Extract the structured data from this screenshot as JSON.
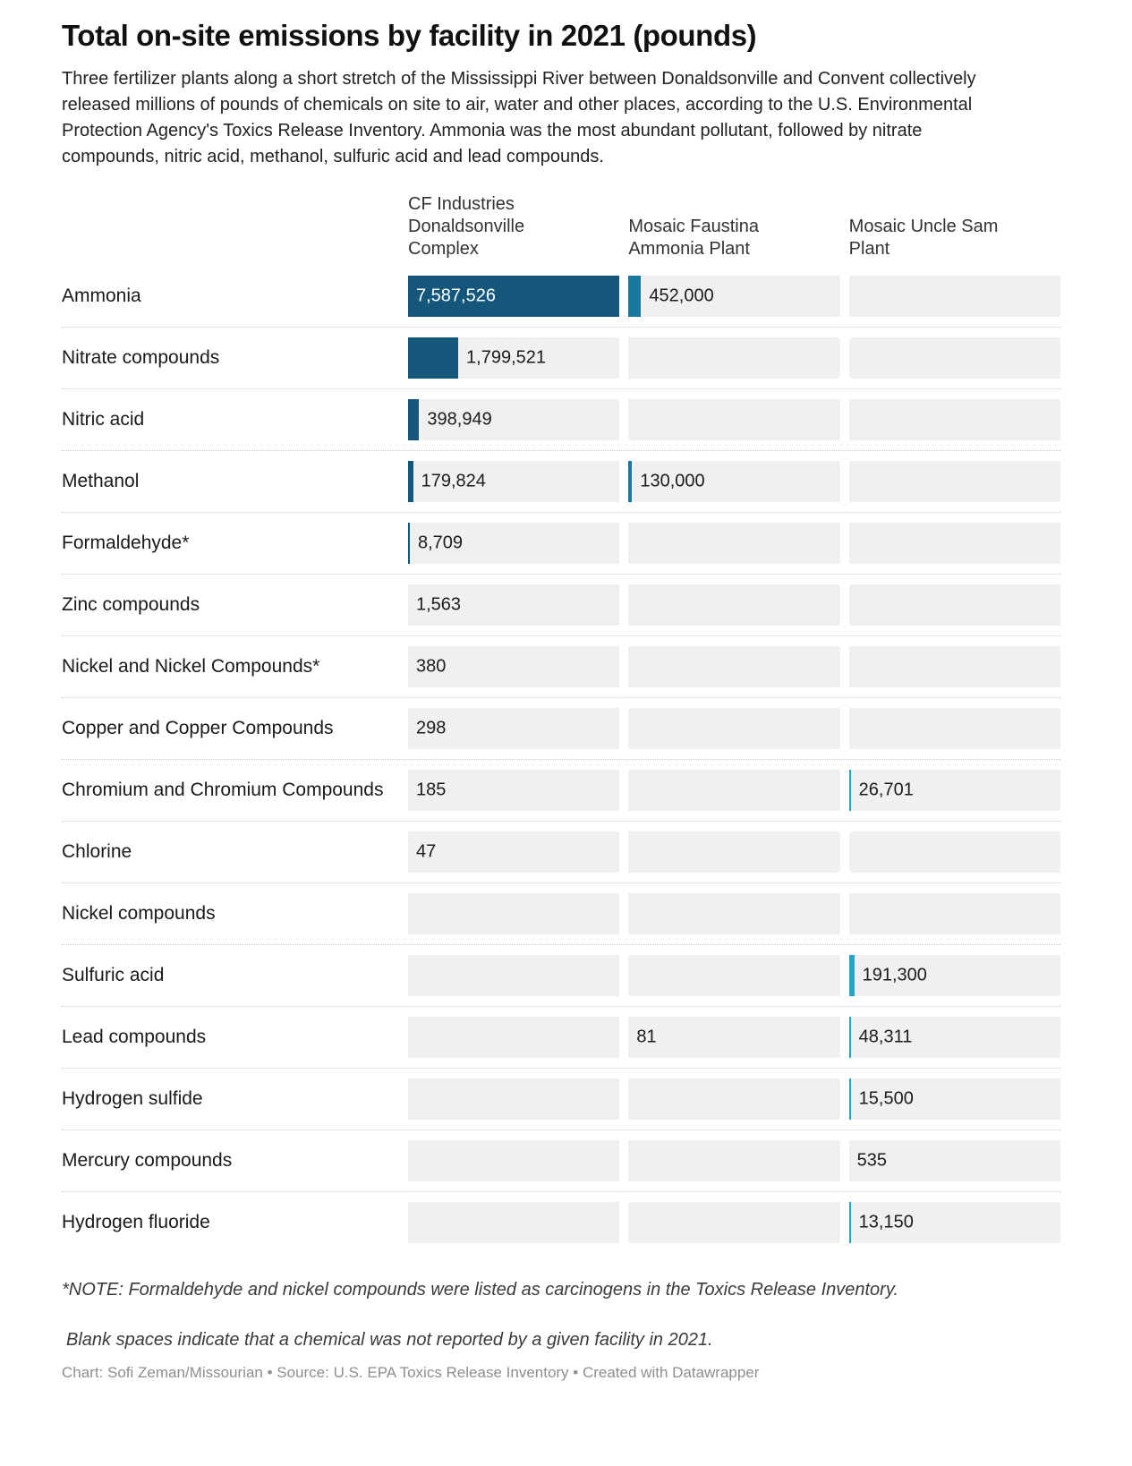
{
  "page": {
    "title": "Total on-site emissions by facility in 2021 (pounds)",
    "description": "Three fertilizer plants along a short stretch of the Mississippi River between Donaldsonville and Convent collectively released millions of pounds of chemicals on site to air, water and other places, according to the U.S. Environmental Protection Agency's Toxics Release Inventory. Ammonia was the most abundant pollutant, followed by nitrate compounds, nitric acid, methanol, sulfuric acid and lead compounds.",
    "notes": {
      "carcinogen": "*NOTE: Formaldehyde and nickel compounds were listed as carcinogens in the Toxics Release Inventory.",
      "blank": "Blank spaces indicate that a chemical was not reported by a given facility in 2021.",
      "credit": "Chart: Sofi Zeman/Missourian • Source: U.S. EPA Toxics Release Inventory • Created with Datawrapper"
    }
  },
  "chart_data": {
    "type": "bar",
    "title": "Total on-site emissions by facility in 2021 (pounds)",
    "unit": "pounds",
    "orientation": "horizontal",
    "max_value": 7587526,
    "xlim": [
      0,
      7587526
    ],
    "grid": "dotted-row-separators",
    "legend_position": "column-headers",
    "track_color": "#f0f0f0",
    "background_color": "#ffffff",
    "categories": [
      "Ammonia",
      "Nitrate compounds",
      "Nitric acid",
      "Methanol",
      "Formaldehyde*",
      "Zinc compounds",
      "Nickel and Nickel Compounds*",
      "Copper and Copper Compounds",
      "Chromium and Chromium Compounds",
      "Chlorine",
      "Nickel compounds",
      "Sulfuric acid",
      "Lead compounds",
      "Hydrogen sulfide",
      "Mercury compounds",
      "Hydrogen fluoride"
    ],
    "series": [
      {
        "name": "CF Industries Donaldsonville Complex",
        "color": "#15577b",
        "values": [
          7587526,
          1799521,
          398949,
          179824,
          8709,
          1563,
          380,
          298,
          185,
          47,
          null,
          null,
          null,
          null,
          null,
          null
        ]
      },
      {
        "name": "Mosaic Faustina Ammonia Plant",
        "color": "#1879a0",
        "values": [
          452000,
          null,
          null,
          130000,
          null,
          null,
          null,
          null,
          null,
          null,
          null,
          null,
          81,
          null,
          null,
          null
        ]
      },
      {
        "name": "Mosaic Uncle Sam Plant",
        "color": "#24a5c5",
        "values": [
          null,
          null,
          null,
          null,
          null,
          null,
          null,
          null,
          26701,
          null,
          null,
          191300,
          48311,
          15500,
          535,
          13150
        ]
      }
    ],
    "value_labels": [
      [
        "7,587,526",
        "452,000",
        null
      ],
      [
        "1,799,521",
        null,
        null
      ],
      [
        "398,949",
        null,
        null
      ],
      [
        "179,824",
        "130,000",
        null
      ],
      [
        "8,709",
        null,
        null
      ],
      [
        "1,563",
        null,
        null
      ],
      [
        "380",
        null,
        null
      ],
      [
        "298",
        null,
        null
      ],
      [
        "185",
        null,
        "26,701"
      ],
      [
        "47",
        null,
        null
      ],
      [
        null,
        null,
        null
      ],
      [
        null,
        null,
        "191,300"
      ],
      [
        null,
        "81",
        "48,311"
      ],
      [
        null,
        null,
        "15,500"
      ],
      [
        null,
        null,
        "535"
      ],
      [
        null,
        null,
        "13,150"
      ]
    ]
  }
}
